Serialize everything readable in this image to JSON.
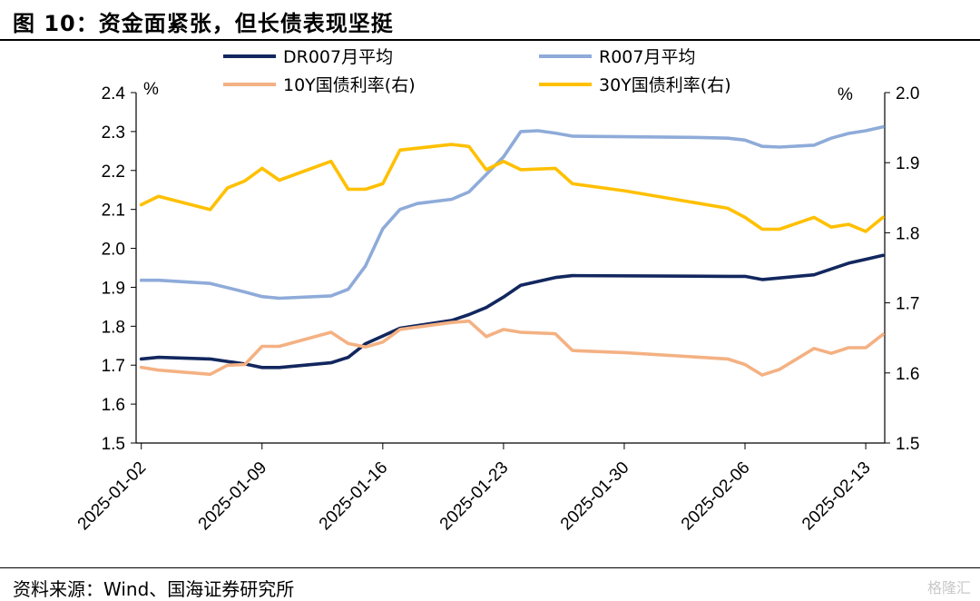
{
  "header": {
    "title": "图 10：资金面紧张，但长债表现坚挺"
  },
  "footer": {
    "source": "资料来源：Wind、国海证券研究所",
    "watermark": "格隆汇"
  },
  "chart_data": {
    "type": "line",
    "title": "",
    "left_axis": {
      "unit": "%",
      "ylim": [
        1.5,
        2.4
      ],
      "ticks": [
        "1.5",
        "1.6",
        "1.7",
        "1.8",
        "1.9",
        "2.0",
        "2.1",
        "2.2",
        "2.3",
        "2.4"
      ]
    },
    "right_axis": {
      "unit": "%",
      "ylim": [
        1.5,
        2.0
      ],
      "ticks": [
        "1.5",
        "1.6",
        "1.7",
        "1.8",
        "1.9",
        "2.0"
      ]
    },
    "x_ticks": [
      "2025-01-02",
      "2025-01-09",
      "2025-01-16",
      "2025-01-23",
      "2025-01-30",
      "2025-02-06",
      "2025-02-13"
    ],
    "x_range": [
      "2025-01-02",
      "2025-02-14"
    ],
    "legend": {
      "position": "top"
    },
    "series": [
      {
        "name": "DR007月平均",
        "axis": "left",
        "color": "#12275e",
        "points": [
          [
            "2025-01-02",
            1.716
          ],
          [
            "2025-01-03",
            1.72
          ],
          [
            "2025-01-06",
            1.716
          ],
          [
            "2025-01-08",
            1.703
          ],
          [
            "2025-01-09",
            1.694
          ],
          [
            "2025-01-10",
            1.694
          ],
          [
            "2025-01-13",
            1.706
          ],
          [
            "2025-01-14",
            1.72
          ],
          [
            "2025-01-15",
            1.755
          ],
          [
            "2025-01-16",
            1.775
          ],
          [
            "2025-01-17",
            1.795
          ],
          [
            "2025-01-20",
            1.815
          ],
          [
            "2025-01-21",
            1.83
          ],
          [
            "2025-01-22",
            1.848
          ],
          [
            "2025-01-23",
            1.875
          ],
          [
            "2025-01-24",
            1.905
          ],
          [
            "2025-01-25",
            1.915
          ],
          [
            "2025-01-26",
            1.925
          ],
          [
            "2025-01-27",
            1.93
          ],
          [
            "2025-02-05",
            1.928
          ],
          [
            "2025-02-06",
            1.928
          ],
          [
            "2025-02-07",
            1.92
          ],
          [
            "2025-02-08",
            1.924
          ],
          [
            "2025-02-10",
            1.932
          ],
          [
            "2025-02-11",
            1.947
          ],
          [
            "2025-02-12",
            1.962
          ],
          [
            "2025-02-13",
            1.972
          ],
          [
            "2025-02-14",
            1.982
          ]
        ]
      },
      {
        "name": "R007月平均",
        "axis": "left",
        "color": "#8eabd9",
        "points": [
          [
            "2025-01-02",
            1.918
          ],
          [
            "2025-01-03",
            1.918
          ],
          [
            "2025-01-06",
            1.91
          ],
          [
            "2025-01-08",
            1.888
          ],
          [
            "2025-01-09",
            1.876
          ],
          [
            "2025-01-10",
            1.872
          ],
          [
            "2025-01-13",
            1.878
          ],
          [
            "2025-01-14",
            1.895
          ],
          [
            "2025-01-15",
            1.955
          ],
          [
            "2025-01-16",
            2.05
          ],
          [
            "2025-01-17",
            2.1
          ],
          [
            "2025-01-18",
            2.115
          ],
          [
            "2025-01-20",
            2.126
          ],
          [
            "2025-01-21",
            2.145
          ],
          [
            "2025-01-22",
            2.19
          ],
          [
            "2025-01-23",
            2.235
          ],
          [
            "2025-01-24",
            2.3
          ],
          [
            "2025-01-25",
            2.302
          ],
          [
            "2025-01-26",
            2.296
          ],
          [
            "2025-01-27",
            2.288
          ],
          [
            "2025-02-03",
            2.285
          ],
          [
            "2025-02-05",
            2.283
          ],
          [
            "2025-02-06",
            2.278
          ],
          [
            "2025-02-07",
            2.262
          ],
          [
            "2025-02-08",
            2.26
          ],
          [
            "2025-02-10",
            2.265
          ],
          [
            "2025-02-11",
            2.283
          ],
          [
            "2025-02-12",
            2.295
          ],
          [
            "2025-02-13",
            2.302
          ],
          [
            "2025-02-14",
            2.312
          ]
        ]
      },
      {
        "name": "10Y国债利率(右)",
        "axis": "right",
        "color": "#f4b183",
        "points": [
          [
            "2025-01-02",
            1.608
          ],
          [
            "2025-01-03",
            1.604
          ],
          [
            "2025-01-06",
            1.598
          ],
          [
            "2025-01-07",
            1.611
          ],
          [
            "2025-01-08",
            1.612
          ],
          [
            "2025-01-09",
            1.638
          ],
          [
            "2025-01-10",
            1.638
          ],
          [
            "2025-01-13",
            1.658
          ],
          [
            "2025-01-14",
            1.642
          ],
          [
            "2025-01-15",
            1.637
          ],
          [
            "2025-01-16",
            1.644
          ],
          [
            "2025-01-17",
            1.662
          ],
          [
            "2025-01-20",
            1.672
          ],
          [
            "2025-01-21",
            1.674
          ],
          [
            "2025-01-22",
            1.652
          ],
          [
            "2025-01-23",
            1.662
          ],
          [
            "2025-01-24",
            1.658
          ],
          [
            "2025-01-26",
            1.656
          ],
          [
            "2025-01-27",
            1.632
          ],
          [
            "2025-01-30",
            1.629
          ],
          [
            "2025-02-05",
            1.62
          ],
          [
            "2025-02-06",
            1.612
          ],
          [
            "2025-02-07",
            1.597
          ],
          [
            "2025-02-08",
            1.605
          ],
          [
            "2025-02-10",
            1.635
          ],
          [
            "2025-02-11",
            1.628
          ],
          [
            "2025-02-12",
            1.636
          ],
          [
            "2025-02-13",
            1.636
          ],
          [
            "2025-02-14",
            1.655
          ]
        ]
      },
      {
        "name": "30Y国债利率(右)",
        "axis": "right",
        "color": "#ffc000",
        "points": [
          [
            "2025-01-02",
            1.84
          ],
          [
            "2025-01-03",
            1.852
          ],
          [
            "2025-01-06",
            1.833
          ],
          [
            "2025-01-07",
            1.864
          ],
          [
            "2025-01-08",
            1.874
          ],
          [
            "2025-01-09",
            1.892
          ],
          [
            "2025-01-10",
            1.875
          ],
          [
            "2025-01-13",
            1.902
          ],
          [
            "2025-01-14",
            1.862
          ],
          [
            "2025-01-15",
            1.862
          ],
          [
            "2025-01-16",
            1.87
          ],
          [
            "2025-01-17",
            1.918
          ],
          [
            "2025-01-20",
            1.926
          ],
          [
            "2025-01-21",
            1.923
          ],
          [
            "2025-01-22",
            1.89
          ],
          [
            "2025-01-23",
            1.902
          ],
          [
            "2025-01-24",
            1.89
          ],
          [
            "2025-01-26",
            1.892
          ],
          [
            "2025-01-27",
            1.87
          ],
          [
            "2025-01-30",
            1.86
          ],
          [
            "2025-02-05",
            1.835
          ],
          [
            "2025-02-06",
            1.822
          ],
          [
            "2025-02-07",
            1.805
          ],
          [
            "2025-02-08",
            1.805
          ],
          [
            "2025-02-10",
            1.822
          ],
          [
            "2025-02-11",
            1.808
          ],
          [
            "2025-02-12",
            1.812
          ],
          [
            "2025-02-13",
            1.802
          ],
          [
            "2025-02-14",
            1.822
          ]
        ]
      }
    ]
  }
}
